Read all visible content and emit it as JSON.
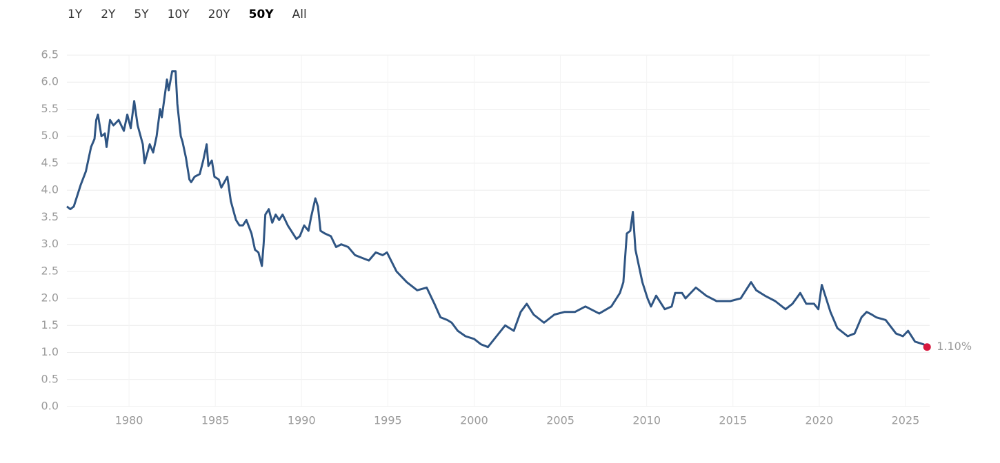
{
  "range_selector": {
    "buttons": [
      "1Y",
      "2Y",
      "5Y",
      "10Y",
      "20Y",
      "50Y",
      "All"
    ],
    "selected": 5
  },
  "chart_data": {
    "type": "line",
    "x": [
      1976.4,
      1976.6,
      1976.8,
      1977.0,
      1977.2,
      1977.5,
      1977.8,
      1978.0,
      1978.1,
      1978.2,
      1978.4,
      1978.6,
      1978.7,
      1978.9,
      1979.1,
      1979.4,
      1979.7,
      1979.9,
      1980.1,
      1980.3,
      1980.5,
      1980.8,
      1980.9,
      1981.2,
      1981.4,
      1981.6,
      1981.8,
      1981.9,
      1982.2,
      1982.3,
      1982.5,
      1982.7,
      1982.8,
      1983.0,
      1983.1,
      1983.3,
      1983.5,
      1983.6,
      1983.8,
      1984.1,
      1984.3,
      1984.5,
      1984.6,
      1984.8,
      1984.95,
      1985.2,
      1985.35,
      1985.7,
      1985.9,
      1986.2,
      1986.4,
      1986.6,
      1986.8,
      1987.1,
      1987.3,
      1987.5,
      1987.7,
      1987.8,
      1987.9,
      1988.1,
      1988.3,
      1988.5,
      1988.7,
      1988.9,
      1989.2,
      1989.5,
      1989.7,
      1989.9,
      1990.15,
      1990.4,
      1990.55,
      1990.8,
      1990.95,
      1991.1,
      1991.35,
      1991.7,
      1992.0,
      1992.3,
      1992.7,
      1993.1,
      1993.5,
      1993.9,
      1994.3,
      1994.7,
      1994.95,
      1995.5,
      1996.1,
      1996.7,
      1997.25,
      1997.7,
      1998.05,
      1998.45,
      1998.7,
      1999.05,
      1999.5,
      2000.0,
      2000.4,
      2000.8,
      2001.3,
      2001.8,
      2002.3,
      2002.7,
      2003.05,
      2003.45,
      2004.05,
      2004.65,
      2005.25,
      2005.85,
      2006.45,
      2007.25,
      2007.95,
      2008.45,
      2008.65,
      2008.85,
      2009.05,
      2009.2,
      2009.35,
      2009.75,
      2010.05,
      2010.25,
      2010.55,
      2010.85,
      2011.05,
      2011.45,
      2011.65,
      2012.05,
      2012.25,
      2012.85,
      2013.45,
      2014.05,
      2014.85,
      2015.45,
      2015.75,
      2016.05,
      2016.35,
      2016.85,
      2017.45,
      2018.05,
      2018.45,
      2018.9,
      2019.25,
      2019.7,
      2019.95,
      2020.15,
      2020.65,
      2021.05,
      2021.65,
      2022.05,
      2022.45,
      2022.75,
      2023.05,
      2023.3,
      2023.85,
      2024.45,
      2024.85,
      2025.15,
      2025.55,
      2026.05,
      2026.25
    ],
    "series": [
      {
        "color": "#2f5583",
        "end_marker_color": "#d7193f",
        "values": [
          3.7,
          3.65,
          3.7,
          3.9,
          4.1,
          4.35,
          4.8,
          4.95,
          5.3,
          5.4,
          5.0,
          5.05,
          4.8,
          5.3,
          5.2,
          5.3,
          5.1,
          5.4,
          5.15,
          5.65,
          5.2,
          4.85,
          4.5,
          4.85,
          4.7,
          5.0,
          5.5,
          5.35,
          6.05,
          5.85,
          6.2,
          6.2,
          5.6,
          5.0,
          4.9,
          4.6,
          4.2,
          4.15,
          4.25,
          4.3,
          4.55,
          4.85,
          4.45,
          4.55,
          4.25,
          4.2,
          4.05,
          4.25,
          3.8,
          3.45,
          3.35,
          3.35,
          3.45,
          3.2,
          2.9,
          2.85,
          2.6,
          3.0,
          3.55,
          3.65,
          3.4,
          3.55,
          3.45,
          3.55,
          3.35,
          3.2,
          3.1,
          3.15,
          3.35,
          3.25,
          3.5,
          3.85,
          3.7,
          3.25,
          3.2,
          3.15,
          2.95,
          3.0,
          2.95,
          2.8,
          2.75,
          2.7,
          2.85,
          2.8,
          2.85,
          2.5,
          2.3,
          2.15,
          2.2,
          1.9,
          1.65,
          1.6,
          1.55,
          1.4,
          1.3,
          1.25,
          1.15,
          1.1,
          1.3,
          1.5,
          1.4,
          1.75,
          1.9,
          1.7,
          1.55,
          1.7,
          1.75,
          1.75,
          1.85,
          1.72,
          1.85,
          2.1,
          2.3,
          3.2,
          3.25,
          3.6,
          2.9,
          2.3,
          2.0,
          1.85,
          2.05,
          1.9,
          1.8,
          1.85,
          2.1,
          2.1,
          2.0,
          2.2,
          2.05,
          1.95,
          1.95,
          2.0,
          2.15,
          2.3,
          2.15,
          2.05,
          1.95,
          1.8,
          1.9,
          2.1,
          1.9,
          1.9,
          1.8,
          2.25,
          1.75,
          1.45,
          1.3,
          1.35,
          1.65,
          1.75,
          1.7,
          1.65,
          1.6,
          1.35,
          1.3,
          1.4,
          1.2,
          1.15,
          1.1
        ],
        "value_labels": [
          null,
          null,
          null,
          null,
          null,
          null,
          null,
          null,
          null,
          null,
          null,
          null,
          null,
          null,
          null,
          null,
          null,
          null,
          null,
          null,
          null,
          null,
          null,
          null,
          null,
          null,
          null,
          null,
          null,
          null,
          null,
          null,
          null,
          null,
          null,
          null,
          null,
          null,
          null,
          null,
          null,
          null,
          null,
          null,
          null,
          null,
          null,
          null,
          null,
          null,
          null,
          null,
          null,
          null,
          null,
          null,
          null,
          null,
          null,
          null,
          null,
          null,
          null,
          null,
          null,
          null,
          null,
          null,
          null,
          null,
          null,
          null,
          null,
          null,
          null,
          null,
          null,
          null,
          null,
          null,
          null,
          null,
          null,
          null,
          null,
          null,
          null,
          null,
          null,
          null,
          null,
          null,
          null,
          null,
          null,
          null,
          null,
          null,
          null,
          null,
          null,
          null,
          null,
          null,
          null,
          null,
          null,
          null,
          null,
          null,
          null,
          null,
          null,
          null,
          null,
          null,
          null,
          null,
          null,
          null,
          null,
          null,
          null,
          null,
          null,
          null,
          null,
          null,
          null,
          null,
          null,
          null,
          null,
          null,
          null,
          null,
          null,
          null,
          null,
          null,
          null,
          null,
          null,
          null,
          null,
          null,
          null,
          null,
          null,
          null,
          null,
          null,
          null,
          null,
          null,
          null,
          null,
          null,
          "1.10%"
        ]
      }
    ],
    "xlim": [
      1976.4,
      2026.4
    ],
    "xticks": [
      1980,
      1985,
      1990,
      1995,
      2000,
      2005,
      2010,
      2015,
      2020,
      2025
    ],
    "ylim": [
      0,
      6.5
    ],
    "yticks": [
      {
        "value": 0,
        "label": "0.0"
      },
      0.5,
      {
        "value": 1,
        "label": "1.0"
      },
      1.5,
      {
        "value": 2,
        "label": "2.0"
      },
      2.5,
      {
        "value": 3,
        "label": "3.0"
      },
      3.5,
      {
        "value": 4,
        "label": "4.0"
      },
      4.5,
      {
        "value": 5,
        "label": "5.0"
      },
      5.5,
      {
        "value": 6,
        "label": "6.0"
      },
      6.5
    ],
    "grid": true
  }
}
